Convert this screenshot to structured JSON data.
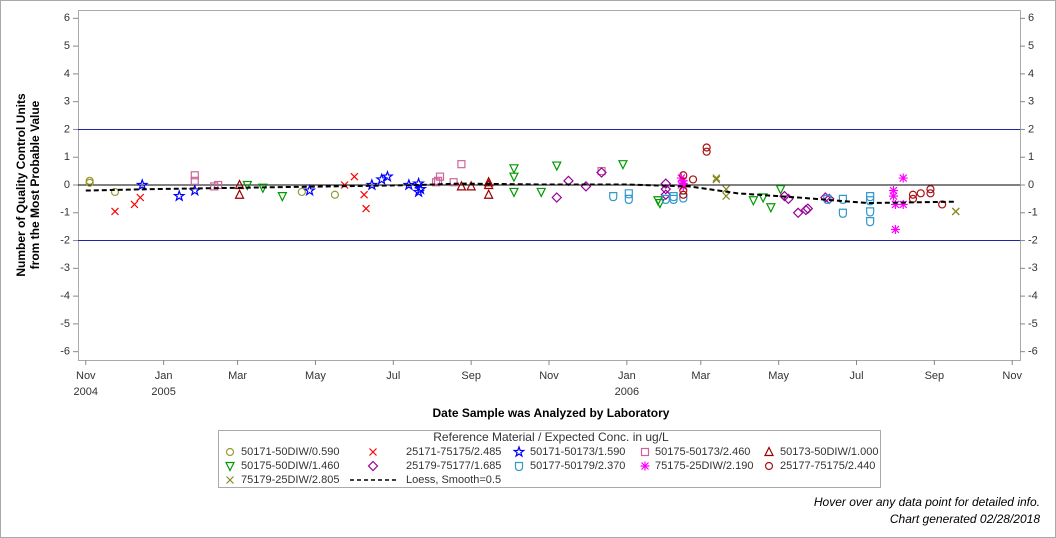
{
  "chart_data": {
    "type": "scatter",
    "y_label": [
      "Number of Quality Control Units",
      "from the Most Probable Value"
    ],
    "x_label": "Date Sample was Analyzed by Laboratory",
    "legend_title": "Reference Material / Expected Conc. in ug/L",
    "footnotes": [
      "Hover over any data point for detailed info.",
      "Chart generated 02/28/2018"
    ],
    "xlim": [
      -0.2,
      24.0
    ],
    "xticks": [
      {
        "value": 0,
        "label": "Nov\n2004"
      },
      {
        "value": 2,
        "label": "Jan\n2005"
      },
      {
        "value": 3.9,
        "label": "Mar"
      },
      {
        "value": 5.9,
        "label": "May"
      },
      {
        "value": 7.9,
        "label": "Jul"
      },
      {
        "value": 9.9,
        "label": "Sep"
      },
      {
        "value": 11.9,
        "label": "Nov"
      },
      {
        "value": 13.9,
        "label": "Jan\n2006"
      },
      {
        "value": 15.8,
        "label": "Mar"
      },
      {
        "value": 17.8,
        "label": "May"
      },
      {
        "value": 19.8,
        "label": "Jul"
      },
      {
        "value": 21.8,
        "label": "Sep"
      },
      {
        "value": 23.8,
        "label": "Nov"
      }
    ],
    "ylim": [
      -6.3,
      6.3
    ],
    "yticks": [
      -6,
      -5,
      -4,
      -3,
      -2,
      -1,
      0,
      1,
      2,
      3,
      4,
      5,
      6
    ],
    "reference_lines": [
      {
        "value": 2,
        "color": "#2222aa"
      },
      {
        "value": 0,
        "color": "#000000"
      },
      {
        "value": -2,
        "color": "#2222aa"
      }
    ],
    "series": [
      {
        "name": "50171-50DIW/0.590",
        "marker": "circle",
        "color": "#999933",
        "x": [
          0.1,
          0.1,
          0.75,
          5.55,
          6.4
        ],
        "values": [
          0.15,
          0.08,
          -0.25,
          -0.25,
          -0.35
        ]
      },
      {
        "name": "25171-75175/2.485",
        "marker": "x",
        "color": "#ff0000",
        "x": [
          0.75,
          1.25,
          1.4,
          6.65,
          6.9,
          7.15,
          7.2
        ],
        "values": [
          -0.95,
          -0.7,
          -0.45,
          0.0,
          0.3,
          -0.35,
          -0.85
        ]
      },
      {
        "name": "50171-50173/1.590",
        "marker": "star",
        "color": "#0000ff",
        "x": [
          1.45,
          2.4,
          2.8,
          5.75,
          7.35,
          7.6,
          7.75,
          8.3,
          8.55,
          8.6,
          8.55
        ],
        "values": [
          0.0,
          -0.4,
          -0.2,
          -0.2,
          0.0,
          0.2,
          0.3,
          0.0,
          0.05,
          -0.15,
          -0.25
        ]
      },
      {
        "name": "50175-50173/2.460",
        "marker": "square",
        "color": "#cc6699",
        "x": [
          2.8,
          2.8,
          3.3,
          3.4,
          9.0,
          9.05,
          9.1,
          9.45,
          9.65,
          13.25
        ],
        "values": [
          0.35,
          0.15,
          -0.05,
          0.0,
          0.1,
          0.15,
          0.3,
          0.1,
          0.75,
          0.5
        ]
      },
      {
        "name": "50173-50DIW/1.000",
        "marker": "triangle",
        "color": "#990000",
        "x": [
          3.95,
          3.95,
          9.65,
          9.9,
          10.35,
          10.35,
          10.35
        ],
        "values": [
          0.0,
          -0.35,
          -0.05,
          -0.05,
          0.1,
          -0.35,
          0.0
        ]
      },
      {
        "name": "50175-50DIW/1.460",
        "marker": "down-triangle",
        "color": "#009900",
        "x": [
          4.15,
          4.55,
          5.05,
          11.0,
          11.0,
          11.0,
          11.7,
          12.1,
          13.8,
          14.7,
          14.75,
          17.15,
          17.4,
          17.6,
          17.85
        ],
        "values": [
          0.0,
          -0.1,
          -0.4,
          0.6,
          0.3,
          -0.25,
          -0.25,
          0.7,
          0.75,
          -0.55,
          -0.65,
          -0.55,
          -0.45,
          -0.8,
          -0.15
        ]
      },
      {
        "name": "25179-75177/1.685",
        "marker": "diamond",
        "color": "#990099",
        "x": [
          12.1,
          12.4,
          12.85,
          13.25,
          14.9,
          14.9,
          14.9,
          17.95,
          18.05,
          18.3,
          18.5,
          18.55,
          19.0,
          19.1
        ],
        "values": [
          -0.45,
          0.15,
          -0.05,
          0.45,
          0.05,
          -0.15,
          -0.35,
          -0.4,
          -0.5,
          -1.0,
          -0.9,
          -0.85,
          -0.45,
          -0.5
        ]
      },
      {
        "name": "50177-50179/2.370",
        "marker": "shield",
        "color": "#3399cc",
        "x": [
          13.55,
          13.95,
          13.95,
          14.9,
          15.1,
          15.1,
          15.35,
          19.05,
          19.45,
          19.45,
          20.15,
          20.15,
          20.15,
          20.15
        ],
        "values": [
          -0.4,
          -0.3,
          -0.5,
          -0.5,
          -0.4,
          -0.5,
          -0.45,
          -0.5,
          -0.5,
          -1.0,
          -0.4,
          -0.55,
          -0.95,
          -1.3
        ]
      },
      {
        "name": "75175-25DIW/2.190",
        "marker": "asterisk",
        "color": "#ff00ff",
        "x": [
          15.3,
          15.35,
          15.35,
          15.35,
          15.3,
          20.75,
          20.75,
          20.8,
          20.8,
          21.0,
          21.0
        ],
        "values": [
          0.25,
          0.05,
          -0.05,
          0.15,
          0.0,
          -0.2,
          -0.4,
          -0.7,
          -1.6,
          0.25,
          -0.7
        ]
      },
      {
        "name": "25177-75175/2.440",
        "marker": "circle",
        "color": "#aa1111",
        "x": [
          15.35,
          15.35,
          15.35,
          15.6,
          15.95,
          15.95,
          21.25,
          21.25,
          21.45,
          21.7,
          21.7,
          22.0
        ],
        "values": [
          0.35,
          -0.2,
          -0.35,
          0.2,
          1.35,
          1.2,
          -0.5,
          -0.35,
          -0.3,
          -0.15,
          -0.3,
          -0.7
        ]
      },
      {
        "name": "75179-25DIW/2.805",
        "marker": "x",
        "color": "#888822",
        "x": [
          16.2,
          16.2,
          16.45,
          16.45,
          22.35,
          22.35
        ],
        "values": [
          0.25,
          0.2,
          -0.15,
          -0.4,
          -0.95,
          -0.95
        ]
      },
      {
        "name": "Loess, Smooth=0.5",
        "marker": "line",
        "color": "#000000",
        "x": [
          0,
          1.65,
          3.95,
          6.25,
          8.55,
          9.6,
          11.65,
          13.85,
          15.5,
          16.75,
          18.3,
          20.1,
          22.35
        ],
        "values": [
          -0.2,
          -0.15,
          -0.1,
          -0.05,
          0.0,
          0.05,
          0.02,
          0.02,
          -0.05,
          -0.3,
          -0.45,
          -0.65,
          -0.6
        ]
      }
    ]
  }
}
